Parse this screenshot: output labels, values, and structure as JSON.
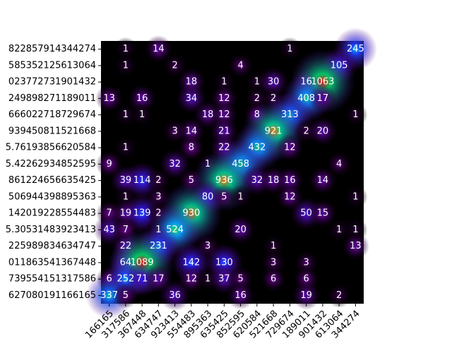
{
  "chart_data": {
    "type": "heatmap",
    "x": [
      "166165",
      "317586",
      "367448",
      "634747",
      "923413",
      "554483",
      "895363",
      "635425",
      "852595",
      "620584",
      "521668",
      "729674",
      "189011",
      "901432",
      "613064",
      "344274"
    ],
    "y": [
      "822857914344274",
      "585352125613064",
      "023772731901432",
      "249898271189011",
      "666022718729674",
      "939450811521668",
      "5.76193856620584",
      "5.42262934852595",
      "861224656635425",
      "506944398895363",
      "142019228554483",
      "5.30531483923413",
      "225989834634747",
      "011863541367448",
      "739554151317586",
      "627080191166165"
    ],
    "z": [
      [
        null,
        1,
        null,
        14,
        null,
        null,
        null,
        null,
        null,
        null,
        null,
        1,
        null,
        null,
        null,
        245
      ],
      [
        null,
        1,
        null,
        null,
        2,
        null,
        null,
        null,
        4,
        null,
        null,
        null,
        null,
        null,
        105,
        null
      ],
      [
        null,
        null,
        null,
        null,
        null,
        18,
        null,
        1,
        null,
        1,
        30,
        null,
        16,
        1063,
        null,
        null
      ],
      [
        13,
        null,
        16,
        null,
        null,
        34,
        null,
        12,
        null,
        2,
        2,
        null,
        408,
        17,
        null,
        null
      ],
      [
        null,
        1,
        1,
        null,
        null,
        null,
        18,
        12,
        null,
        8,
        null,
        313,
        null,
        null,
        null,
        1
      ],
      [
        null,
        null,
        null,
        null,
        3,
        14,
        null,
        21,
        null,
        null,
        921,
        null,
        2,
        20,
        null,
        null
      ],
      [
        null,
        1,
        null,
        null,
        null,
        8,
        null,
        22,
        null,
        432,
        null,
        12,
        null,
        null,
        null,
        null
      ],
      [
        9,
        null,
        null,
        null,
        32,
        null,
        1,
        null,
        458,
        null,
        null,
        null,
        null,
        null,
        4,
        null
      ],
      [
        null,
        39,
        114,
        2,
        null,
        5,
        null,
        936,
        null,
        32,
        18,
        16,
        null,
        14,
        null,
        null
      ],
      [
        null,
        1,
        null,
        3,
        null,
        null,
        80,
        5,
        1,
        null,
        null,
        12,
        null,
        null,
        null,
        1
      ],
      [
        7,
        19,
        139,
        2,
        null,
        930,
        null,
        null,
        null,
        null,
        null,
        null,
        50,
        15,
        null,
        null
      ],
      [
        43,
        7,
        null,
        1,
        524,
        null,
        null,
        null,
        20,
        null,
        null,
        null,
        null,
        null,
        1,
        1
      ],
      [
        null,
        22,
        null,
        231,
        null,
        null,
        3,
        null,
        null,
        null,
        1,
        null,
        null,
        null,
        null,
        13
      ],
      [
        null,
        64,
        1089,
        null,
        null,
        142,
        null,
        130,
        null,
        null,
        3,
        null,
        3,
        null,
        null,
        null
      ],
      [
        6,
        252,
        71,
        17,
        null,
        12,
        1,
        37,
        5,
        null,
        6,
        null,
        6,
        null,
        null,
        null
      ],
      [
        337,
        5,
        null,
        null,
        36,
        null,
        null,
        null,
        16,
        null,
        null,
        null,
        19,
        null,
        2,
        null
      ]
    ]
  }
}
